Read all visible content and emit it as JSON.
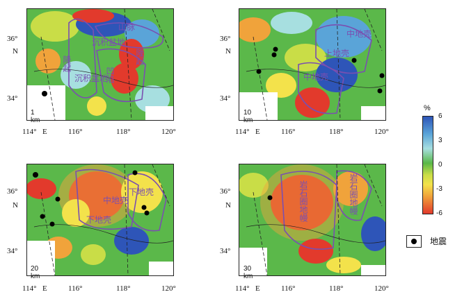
{
  "colorbar": {
    "unit": "%",
    "ticks": [
      "6",
      "3",
      "0",
      "-3",
      "-6"
    ],
    "colors": [
      "#2e55b8",
      "#5aa4d8",
      "#a7dfe0",
      "#59b848",
      "#c9dd47",
      "#f3e24b",
      "#f0a33b",
      "#e23a2c"
    ]
  },
  "legend": {
    "earthquake_label": "地震",
    "marker_color": "#000000"
  },
  "axes": {
    "x_ticks": [
      "114°",
      "E",
      "116°",
      "118°",
      "120°"
    ],
    "y_ticks": [
      "36°",
      "34°"
    ],
    "y_axis_label": "N"
  },
  "panels": [
    {
      "id": "p1",
      "depth": "1 km",
      "regions": [
        "山脉",
        "沉积盆地",
        "沉积盆地",
        "隆起",
        "凹陷",
        "隆起"
      ]
    },
    {
      "id": "p2",
      "depth": "10 km",
      "regions": [
        "中地壳",
        "上地壳",
        "中地壳"
      ]
    },
    {
      "id": "p3",
      "depth": "20 km",
      "regions": [
        "中地壳",
        "下地壳",
        "下地壳"
      ]
    },
    {
      "id": "p4",
      "depth": "30 km",
      "regions": [
        "岩石圈地幔",
        "岩石圈地幔"
      ]
    }
  ]
}
